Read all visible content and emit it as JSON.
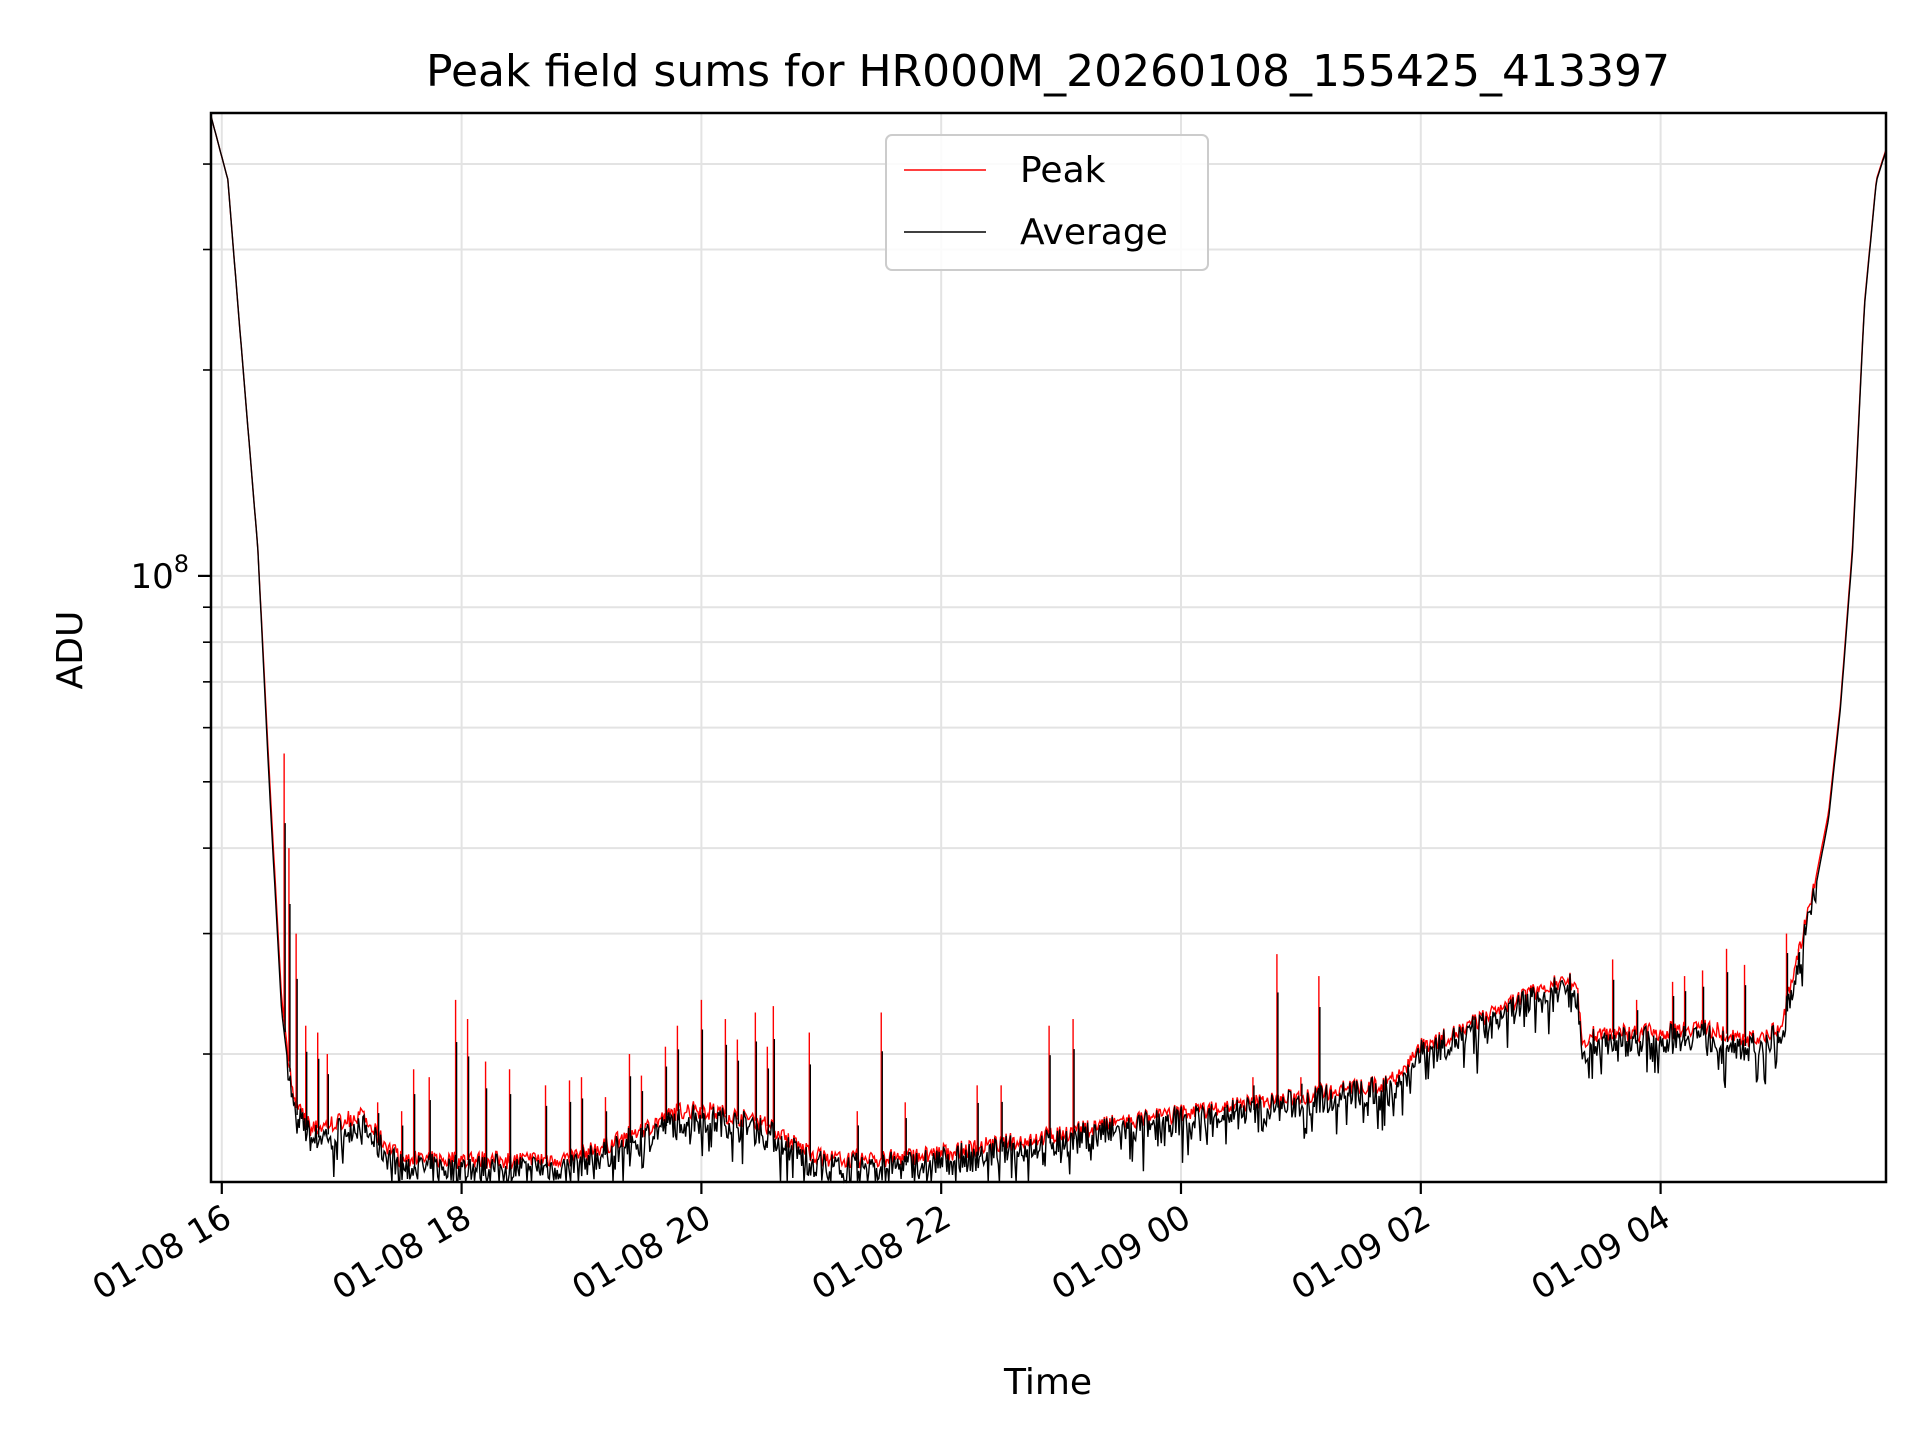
{
  "chart_data": {
    "type": "line",
    "title": "Peak field sums for HR000M_20260108_155425_413397",
    "xlabel": "Time",
    "ylabel": "ADU",
    "yscale": "log",
    "ylim": [
      13000000,
      475000000
    ],
    "y_major_tick": {
      "value": 100000000,
      "label_base": "10",
      "label_exp": "8"
    },
    "y_minor_ticks": [
      20000000,
      30000000,
      40000000,
      50000000,
      60000000,
      70000000,
      80000000,
      90000000,
      200000000,
      300000000,
      400000000
    ],
    "xlim_hours": [
      15.91,
      29.88
    ],
    "x_ticks": [
      {
        "hour": 16,
        "label": "01-08 16"
      },
      {
        "hour": 18,
        "label": "01-08 18"
      },
      {
        "hour": 20,
        "label": "01-08 20"
      },
      {
        "hour": 22,
        "label": "01-08 22"
      },
      {
        "hour": 24,
        "label": "01-09 00"
      },
      {
        "hour": 26,
        "label": "01-09 02"
      },
      {
        "hour": 28,
        "label": "01-09 04"
      }
    ],
    "grid": true,
    "legend": {
      "position": "top-center"
    },
    "series": [
      {
        "name": "Peak",
        "color": "#ff0000",
        "baseline": [
          [
            15.91,
            470000000
          ],
          [
            16.05,
            380000000
          ],
          [
            16.15,
            230000000
          ],
          [
            16.3,
            110000000
          ],
          [
            16.4,
            50000000
          ],
          [
            16.5,
            24000000
          ],
          [
            16.6,
            17000000
          ],
          [
            16.75,
            15500000
          ],
          [
            17.0,
            16000000
          ],
          [
            17.15,
            16300000
          ],
          [
            17.3,
            15200000
          ],
          [
            17.5,
            14000000
          ],
          [
            18.0,
            14000000
          ],
          [
            18.5,
            14000000
          ],
          [
            18.9,
            14100000
          ],
          [
            19.2,
            14700000
          ],
          [
            19.5,
            15500000
          ],
          [
            19.8,
            16500000
          ],
          [
            20.0,
            16600000
          ],
          [
            20.3,
            16200000
          ],
          [
            20.5,
            15900000
          ],
          [
            20.8,
            14700000
          ],
          [
            21.0,
            14100000
          ],
          [
            21.4,
            14000000
          ],
          [
            21.8,
            14200000
          ],
          [
            22.2,
            14500000
          ],
          [
            22.6,
            14900000
          ],
          [
            23.0,
            15300000
          ],
          [
            23.5,
            15900000
          ],
          [
            24.0,
            16400000
          ],
          [
            24.5,
            16900000
          ],
          [
            24.8,
            17100000
          ],
          [
            25.2,
            17600000
          ],
          [
            25.5,
            17900000
          ],
          [
            25.7,
            18000000
          ],
          [
            25.85,
            19000000
          ],
          [
            26.0,
            20500000
          ],
          [
            26.3,
            21500000
          ],
          [
            26.6,
            23000000
          ],
          [
            26.8,
            24000000
          ],
          [
            27.0,
            25000000
          ],
          [
            27.15,
            25500000
          ],
          [
            27.3,
            25500000
          ],
          [
            27.35,
            21000000
          ],
          [
            27.5,
            21500000
          ],
          [
            27.7,
            21500000
          ],
          [
            28.0,
            21500000
          ],
          [
            28.3,
            22000000
          ],
          [
            28.6,
            21300000
          ],
          [
            28.8,
            21000000
          ],
          [
            29.0,
            21800000
          ],
          [
            29.12,
            27000000
          ],
          [
            29.25,
            33000000
          ],
          [
            29.4,
            45000000
          ],
          [
            29.5,
            65000000
          ],
          [
            29.6,
            110000000
          ],
          [
            29.7,
            250000000
          ],
          [
            29.8,
            380000000
          ],
          [
            29.88,
            420000000
          ]
        ],
        "spikes": [
          [
            16.52,
            55000000
          ],
          [
            16.56,
            40000000
          ],
          [
            16.62,
            30000000
          ],
          [
            16.7,
            22000000
          ],
          [
            16.8,
            21500000
          ],
          [
            16.88,
            20000000
          ],
          [
            17.3,
            17000000
          ],
          [
            17.5,
            16500000
          ],
          [
            17.6,
            19000000
          ],
          [
            17.73,
            18500000
          ],
          [
            17.95,
            24000000
          ],
          [
            18.05,
            22500000
          ],
          [
            18.2,
            19500000
          ],
          [
            18.4,
            19000000
          ],
          [
            18.7,
            18000000
          ],
          [
            18.9,
            18300000
          ],
          [
            19.0,
            18500000
          ],
          [
            19.2,
            17300000
          ],
          [
            19.4,
            20000000
          ],
          [
            19.5,
            18600000
          ],
          [
            19.7,
            20500000
          ],
          [
            19.8,
            22000000
          ],
          [
            20.0,
            24000000
          ],
          [
            20.2,
            22500000
          ],
          [
            20.3,
            21000000
          ],
          [
            20.45,
            23000000
          ],
          [
            20.55,
            20500000
          ],
          [
            20.6,
            23500000
          ],
          [
            20.9,
            21500000
          ],
          [
            21.3,
            16500000
          ],
          [
            21.5,
            23000000
          ],
          [
            21.7,
            17000000
          ],
          [
            22.3,
            18000000
          ],
          [
            22.5,
            18000000
          ],
          [
            22.9,
            22000000
          ],
          [
            23.1,
            22500000
          ],
          [
            24.6,
            18500000
          ],
          [
            24.8,
            28000000
          ],
          [
            25.15,
            26000000
          ],
          [
            25.0,
            18500000
          ],
          [
            27.6,
            27500000
          ],
          [
            27.8,
            24000000
          ],
          [
            28.1,
            25500000
          ],
          [
            28.2,
            26000000
          ],
          [
            28.35,
            26500000
          ],
          [
            28.55,
            28500000
          ],
          [
            28.7,
            27000000
          ],
          [
            29.05,
            30000000
          ],
          [
            29.15,
            28500000
          ]
        ]
      },
      {
        "name": "Average",
        "color": "#000000",
        "baseline": [
          [
            15.91,
            470000000
          ],
          [
            16.05,
            380000000
          ],
          [
            16.15,
            230000000
          ],
          [
            16.3,
            110000000
          ],
          [
            16.4,
            48000000
          ],
          [
            16.5,
            23000000
          ],
          [
            16.6,
            16500000
          ],
          [
            16.75,
            15000000
          ],
          [
            17.0,
            15500000
          ],
          [
            17.15,
            15800000
          ],
          [
            17.3,
            14700000
          ],
          [
            17.5,
            13600000
          ],
          [
            18.0,
            13600000
          ],
          [
            18.5,
            13600000
          ],
          [
            18.9,
            13700000
          ],
          [
            19.2,
            14300000
          ],
          [
            19.5,
            15100000
          ],
          [
            19.8,
            16000000
          ],
          [
            20.0,
            16100000
          ],
          [
            20.3,
            15800000
          ],
          [
            20.5,
            15500000
          ],
          [
            20.8,
            14300000
          ],
          [
            21.0,
            13700000
          ],
          [
            21.4,
            13600000
          ],
          [
            21.8,
            13800000
          ],
          [
            22.2,
            14100000
          ],
          [
            22.6,
            14500000
          ],
          [
            23.0,
            14900000
          ],
          [
            23.5,
            15500000
          ],
          [
            24.0,
            16000000
          ],
          [
            24.5,
            16500000
          ],
          [
            24.8,
            16700000
          ],
          [
            25.2,
            17200000
          ],
          [
            25.5,
            17500000
          ],
          [
            25.7,
            17600000
          ],
          [
            25.85,
            18500000
          ],
          [
            26.0,
            20000000
          ],
          [
            26.3,
            21000000
          ],
          [
            26.6,
            22400000
          ],
          [
            26.8,
            23400000
          ],
          [
            27.0,
            24400000
          ],
          [
            27.15,
            24900000
          ],
          [
            27.3,
            24900000
          ],
          [
            27.35,
            20300000
          ],
          [
            27.5,
            20900000
          ],
          [
            27.7,
            20900000
          ],
          [
            28.0,
            20900000
          ],
          [
            28.3,
            21400000
          ],
          [
            28.6,
            20700000
          ],
          [
            28.8,
            20400000
          ],
          [
            29.0,
            21200000
          ],
          [
            29.12,
            26000000
          ],
          [
            29.25,
            32000000
          ],
          [
            29.4,
            44000000
          ],
          [
            29.5,
            64000000
          ],
          [
            29.6,
            108000000
          ],
          [
            29.7,
            248000000
          ],
          [
            29.8,
            378000000
          ],
          [
            29.88,
            418000000
          ]
        ]
      }
    ]
  }
}
